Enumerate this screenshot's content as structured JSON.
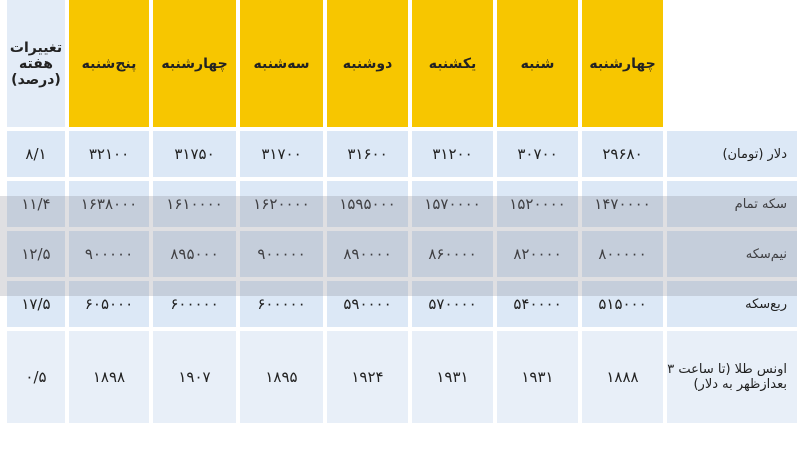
{
  "table": {
    "columns": [
      "",
      "چهارشنبه",
      "شنبه",
      "یکشنبه",
      "دوشنبه",
      "سه‌شنبه",
      "چهارشنبه",
      "پنج‌شنبه",
      "تغییرات هفته (درصد)"
    ],
    "rows": [
      [
        "دلار (تومان)",
        "۲۹۶۸۰",
        "۳۰۷۰۰",
        "۳۱۲۰۰",
        "۳۱۶۰۰",
        "۳۱۷۰۰",
        "۳۱۷۵۰",
        "۳۲۱۰۰",
        "۸/۱"
      ],
      [
        "سکه تمام",
        "۱۴۷۰۰۰۰",
        "۱۵۲۰۰۰۰",
        "۱۵۷۰۰۰۰",
        "۱۵۹۵۰۰۰",
        "۱۶۲۰۰۰۰",
        "۱۶۱۰۰۰۰",
        "۱۶۳۸۰۰۰",
        "۱۱/۴"
      ],
      [
        "نیم‌سکه",
        "۸۰۰۰۰۰",
        "۸۲۰۰۰۰",
        "۸۶۰۰۰۰",
        "۸۹۰۰۰۰",
        "۹۰۰۰۰۰",
        "۸۹۵۰۰۰",
        "۹۰۰۰۰۰",
        "۱۲/۵"
      ],
      [
        "ربع‌سکه",
        "۵۱۵۰۰۰",
        "۵۴۰۰۰۰",
        "۵۷۰۰۰۰",
        "۵۹۰۰۰۰",
        "۶۰۰۰۰۰",
        "۶۰۰۰۰۰",
        "۶۰۵۰۰۰",
        "۱۷/۵"
      ],
      [
        "اونس طلا (تا ساعت ۳ بعدازظهر به دلار)",
        "۱۸۸۸",
        "۱۹۳۱",
        "۱۹۳۱",
        "۱۹۲۴",
        "۱۸۹۵",
        "۱۹۰۷",
        "۱۸۹۸",
        "۰/۵"
      ]
    ]
  }
}
